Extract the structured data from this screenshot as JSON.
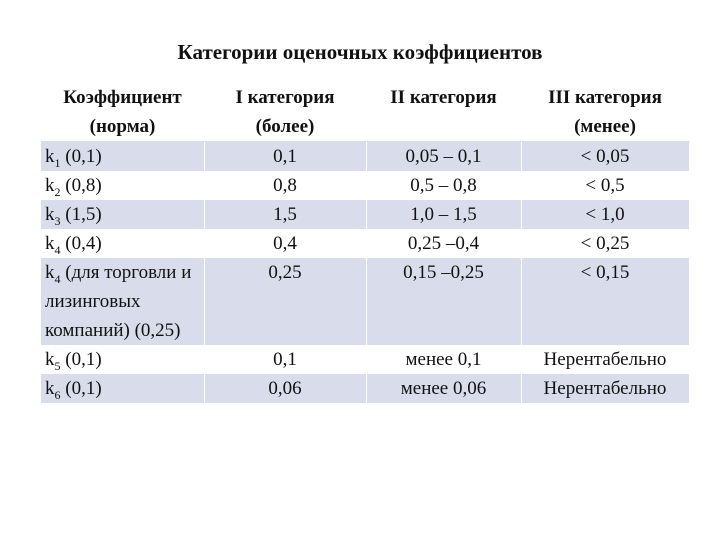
{
  "title": "Категории оценочных коэффициентов",
  "header": [
    {
      "line1": "Коэффициент",
      "line2": "(норма)"
    },
    {
      "line1": "I категория",
      "line2": "(более)"
    },
    {
      "line1": "II категория",
      "line2": ""
    },
    {
      "line1": "III категория",
      "line2": "(менее)"
    }
  ],
  "rows": [
    {
      "base": "k",
      "sub": "1",
      "rest": " (0,1)",
      "c1": "0,1",
      "c2": "0,05 – 0,1",
      "c3": "< 0,05"
    },
    {
      "base": "k",
      "sub": "2",
      "rest": " (0,8)",
      "c1": "0,8",
      "c2": "0,5 – 0,8",
      "c3": "< 0,5"
    },
    {
      "base": "k",
      "sub": "3",
      "rest": " (1,5)",
      "c1": "1,5",
      "c2": "1,0 – 1,5",
      "c3": "< 1,0"
    },
    {
      "base": "k",
      "sub": "4",
      "rest": " (0,4)",
      "c1": "0,4",
      "c2": "0,25 –0,4",
      "c3": "< 0,25"
    },
    {
      "base": "k",
      "sub": "4",
      "rest": " (для торговли и лизинговых компаний) (0,25)",
      "c1": "0,25",
      "c2": "0,15 –0,25",
      "c3": "< 0,15"
    },
    {
      "base": "k",
      "sub": "5",
      "rest": " (0,1)",
      "c1": "0,1",
      "c2": "менее 0,1",
      "c3": "Нерентабельно"
    },
    {
      "base": "k",
      "sub": "6",
      "rest": " (0,1)",
      "c1": "0,06",
      "c2": "менее 0,06",
      "c3": "Нерентабельно"
    }
  ]
}
